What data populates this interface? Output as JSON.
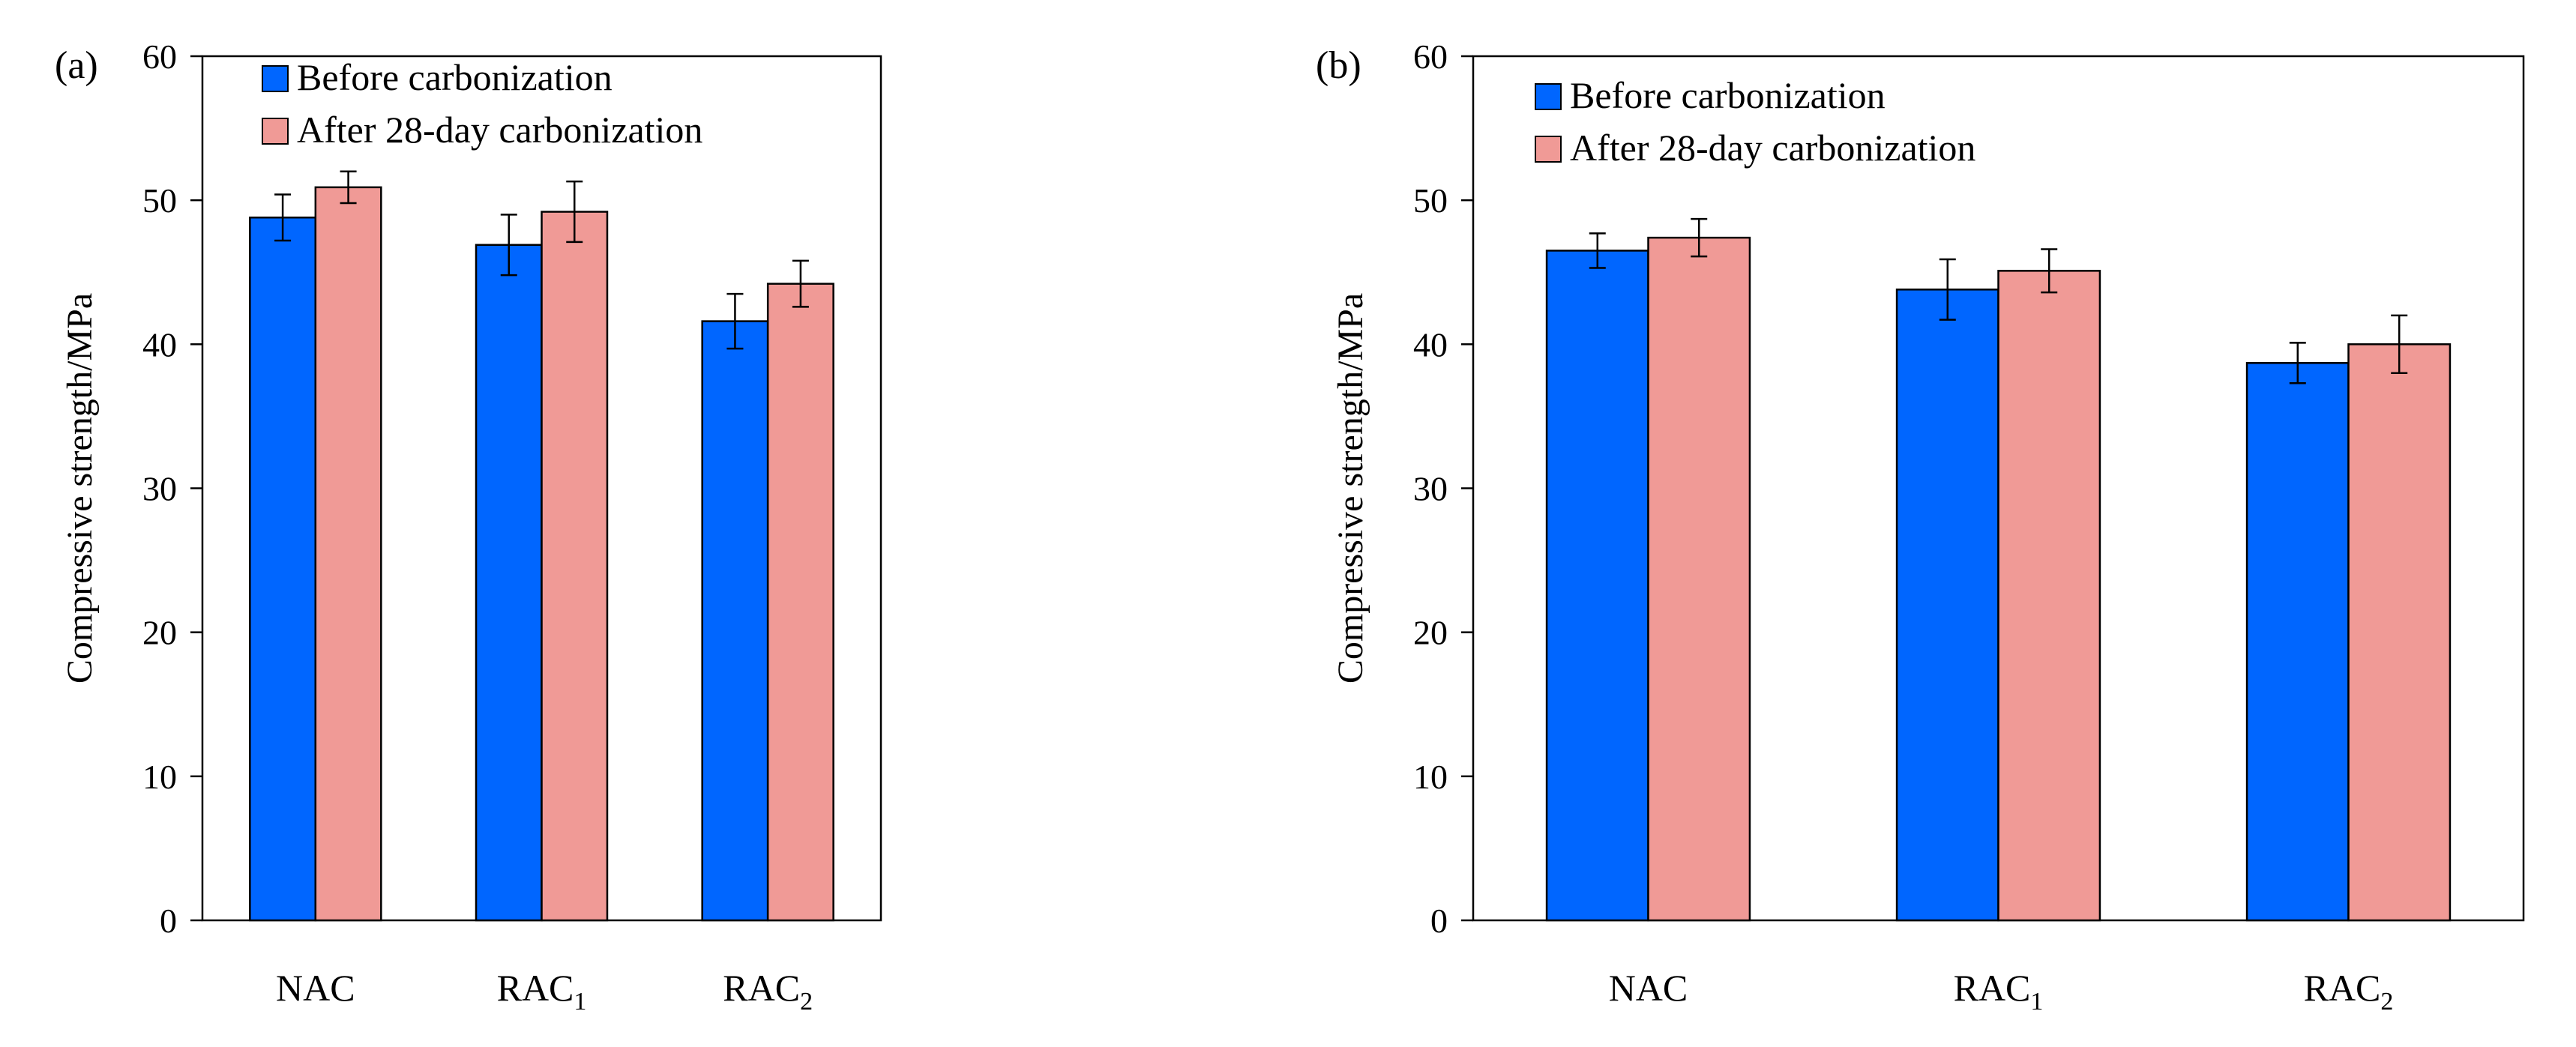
{
  "chart_data": [
    {
      "panel_label": "(a)",
      "type": "bar",
      "ylabel": "Compressive strength/MPa",
      "ylim": [
        0,
        60
      ],
      "yticks": [
        0,
        10,
        20,
        30,
        40,
        50,
        60
      ],
      "grid": false,
      "legend_position": "top-left",
      "categories": [
        {
          "base": "NAC",
          "sub": ""
        },
        {
          "base": "RAC",
          "sub": "1"
        },
        {
          "base": "RAC",
          "sub": "2"
        }
      ],
      "series": [
        {
          "name": "Before carbonization",
          "color": "#0066ff",
          "values": [
            48.8,
            46.9,
            41.6
          ],
          "errors": [
            1.6,
            2.1,
            1.9
          ]
        },
        {
          "name": "After 28-day carbonization",
          "color": "#f09a96",
          "values": [
            50.9,
            49.2,
            44.2
          ],
          "errors": [
            1.1,
            2.1,
            1.6
          ]
        }
      ]
    },
    {
      "panel_label": "(b)",
      "type": "bar",
      "ylabel": "Compressive strength/MPa",
      "ylim": [
        0,
        60
      ],
      "yticks": [
        0,
        10,
        20,
        30,
        40,
        50,
        60
      ],
      "grid": false,
      "legend_position": "top-left",
      "categories": [
        {
          "base": "NAC",
          "sub": ""
        },
        {
          "base": "RAC",
          "sub": "1"
        },
        {
          "base": "RAC",
          "sub": "2"
        }
      ],
      "series": [
        {
          "name": "Before carbonization",
          "color": "#0066ff",
          "values": [
            46.5,
            43.8,
            38.7
          ],
          "errors": [
            1.2,
            2.1,
            1.4
          ]
        },
        {
          "name": "After 28-day carbonization",
          "color": "#f09a96",
          "values": [
            47.4,
            45.1,
            40.0
          ],
          "errors": [
            1.3,
            1.5,
            2.0
          ]
        }
      ]
    }
  ]
}
